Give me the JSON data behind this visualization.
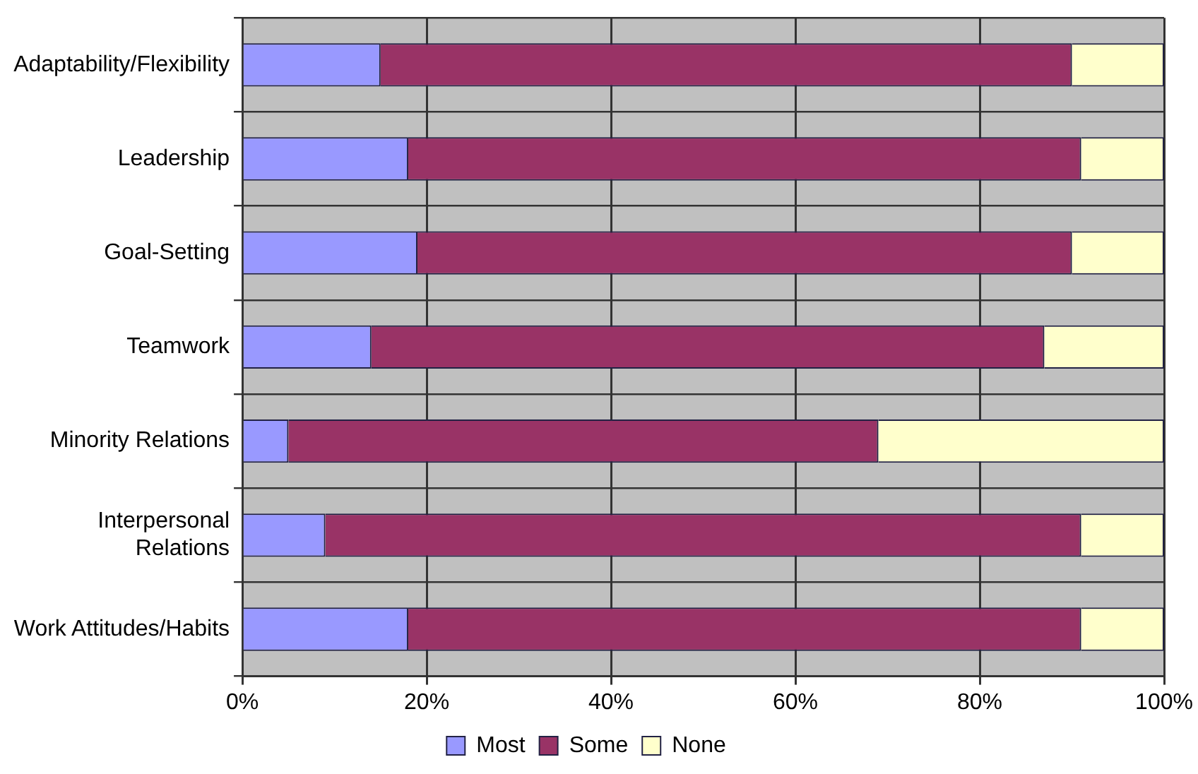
{
  "chart_data": {
    "type": "bar",
    "orientation": "horizontal",
    "stacked": true,
    "categories": [
      "Adaptability/Flexibility",
      "Leadership",
      "Goal-Setting",
      "Teamwork",
      "Minority Relations",
      "Interpersonal\nRelations",
      "Work Attitudes/Habits"
    ],
    "series": [
      {
        "name": "Most",
        "color": "#9999ff",
        "values": [
          15,
          18,
          19,
          14,
          5,
          9,
          18
        ]
      },
      {
        "name": "Some",
        "color": "#993366",
        "values": [
          75,
          73,
          71,
          73,
          64,
          82,
          73
        ]
      },
      {
        "name": "None",
        "color": "#ffffcc",
        "values": [
          10,
          9,
          10,
          13,
          31,
          9,
          9
        ]
      }
    ],
    "xlim": [
      0,
      100
    ],
    "xticks": [
      {
        "value": 0,
        "label": "0%"
      },
      {
        "value": 20,
        "label": "20%"
      },
      {
        "value": 40,
        "label": "40%"
      },
      {
        "value": 60,
        "label": "60%"
      },
      {
        "value": 80,
        "label": "80%"
      },
      {
        "value": 100,
        "label": "100%"
      }
    ],
    "grid": true,
    "legend": "bottom"
  }
}
